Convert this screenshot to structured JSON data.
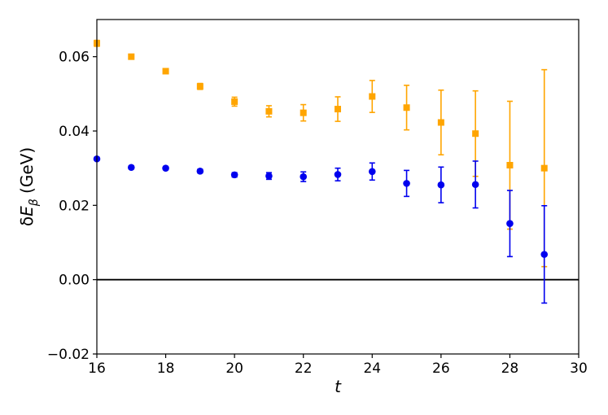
{
  "chart_data": {
    "type": "scatter",
    "xlabel": "t",
    "ylabel": {
      "prefix": "δ",
      "var": "E",
      "sub": "β",
      "unit": " (GeV)"
    },
    "xlim": [
      16,
      30
    ],
    "ylim": [
      -0.02,
      0.07
    ],
    "x_ticks": [
      16,
      18,
      20,
      22,
      24,
      26,
      28,
      30
    ],
    "x_tick_labels": [
      "16",
      "18",
      "20",
      "22",
      "24",
      "26",
      "28",
      "30"
    ],
    "y_ticks": [
      -0.02,
      0.0,
      0.02,
      0.04,
      0.06
    ],
    "y_tick_labels": [
      "−0.02",
      "0.00",
      "0.02",
      "0.04",
      "0.06"
    ],
    "grid": false,
    "hline": {
      "y": 0.0,
      "color": "#000000"
    },
    "series": [
      {
        "marker": "square",
        "color": "#ffa500",
        "points": [
          {
            "x": 16,
            "y": 0.0636,
            "err": 0.0008
          },
          {
            "x": 17,
            "y": 0.06,
            "err": 0.0005
          },
          {
            "x": 18,
            "y": 0.0561,
            "err": 0.0005
          },
          {
            "x": 19,
            "y": 0.052,
            "err": 0.0008
          },
          {
            "x": 20,
            "y": 0.0479,
            "err": 0.0012
          },
          {
            "x": 21,
            "y": 0.0453,
            "err": 0.0015
          },
          {
            "x": 22,
            "y": 0.0449,
            "err": 0.0022
          },
          {
            "x": 23,
            "y": 0.0459,
            "err": 0.0033
          },
          {
            "x": 24,
            "y": 0.0493,
            "err": 0.0043
          },
          {
            "x": 25,
            "y": 0.0463,
            "err": 0.006
          },
          {
            "x": 26,
            "y": 0.0423,
            "err": 0.0087
          },
          {
            "x": 27,
            "y": 0.0393,
            "err": 0.0115
          },
          {
            "x": 28,
            "y": 0.0308,
            "err": 0.0172
          },
          {
            "x": 29,
            "y": 0.03,
            "err": 0.0265
          }
        ]
      },
      {
        "marker": "circle",
        "color": "#0000ee",
        "points": [
          {
            "x": 16,
            "y": 0.0325,
            "err": 0.0004
          },
          {
            "x": 17,
            "y": 0.0302,
            "err": 0.0004
          },
          {
            "x": 18,
            "y": 0.03,
            "err": 0.0004
          },
          {
            "x": 19,
            "y": 0.0292,
            "err": 0.0005
          },
          {
            "x": 20,
            "y": 0.0282,
            "err": 0.0006
          },
          {
            "x": 21,
            "y": 0.0279,
            "err": 0.0009
          },
          {
            "x": 22,
            "y": 0.0277,
            "err": 0.0013
          },
          {
            "x": 23,
            "y": 0.0283,
            "err": 0.0017
          },
          {
            "x": 24,
            "y": 0.0291,
            "err": 0.0023
          },
          {
            "x": 25,
            "y": 0.0259,
            "err": 0.0035
          },
          {
            "x": 26,
            "y": 0.0255,
            "err": 0.0048
          },
          {
            "x": 27,
            "y": 0.0256,
            "err": 0.0063
          },
          {
            "x": 28,
            "y": 0.0151,
            "err": 0.0089
          },
          {
            "x": 29,
            "y": 0.0068,
            "err": 0.0131
          }
        ]
      }
    ]
  }
}
